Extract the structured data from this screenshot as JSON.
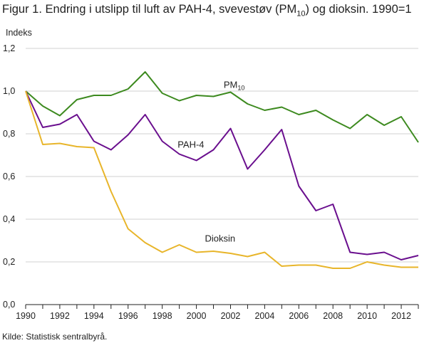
{
  "title": {
    "main": "Figur 1. Endring i utslipp til luft av PAH-4, svevestøv (PM",
    "sub": "10",
    "rest": ") og dioksin. 1990=1"
  },
  "source": "Kilde: Statistisk sentralbyrå.",
  "chart_data": {
    "type": "line",
    "ylabel": "Indeks",
    "xlabel": "",
    "ylim": [
      0,
      1.2
    ],
    "yticks": [
      "0,0",
      "0,2",
      "0,4",
      "0,6",
      "0,8",
      "1,0",
      "1,2"
    ],
    "xlim": [
      1990,
      2013
    ],
    "xticks": [
      "1990",
      "1992",
      "1994",
      "1996",
      "1998",
      "2000",
      "2002",
      "2004",
      "2006",
      "2008",
      "2010",
      "2012"
    ],
    "grid": "horizontal",
    "x": [
      1990,
      1991,
      1992,
      1993,
      1994,
      1995,
      1996,
      1997,
      1998,
      1999,
      2000,
      2001,
      2002,
      2003,
      2004,
      2005,
      2006,
      2007,
      2008,
      2009,
      2010,
      2011,
      2012,
      2013
    ],
    "series": [
      {
        "name": "PM",
        "name_sub": "10",
        "color": "#3d8a1f",
        "values": [
          1.0,
          0.93,
          0.885,
          0.96,
          0.98,
          0.98,
          1.01,
          1.09,
          0.99,
          0.955,
          0.98,
          0.975,
          0.995,
          0.94,
          0.91,
          0.925,
          0.89,
          0.91,
          0.865,
          0.825,
          0.89,
          0.84,
          0.88,
          0.76
        ]
      },
      {
        "name": "PAH-4",
        "color": "#6a0f8e",
        "values": [
          1.0,
          0.83,
          0.845,
          0.89,
          0.765,
          0.725,
          0.795,
          0.89,
          0.765,
          0.705,
          0.675,
          0.725,
          0.825,
          0.635,
          0.725,
          0.82,
          0.555,
          0.44,
          0.47,
          0.245,
          0.235,
          0.245,
          0.21,
          0.23
        ]
      },
      {
        "name": "Dioksin",
        "color": "#e8b52a",
        "values": [
          1.0,
          0.75,
          0.755,
          0.74,
          0.735,
          0.53,
          0.355,
          0.29,
          0.245,
          0.28,
          0.245,
          0.25,
          0.24,
          0.225,
          0.245,
          0.18,
          0.185,
          0.185,
          0.17,
          0.17,
          0.2,
          0.185,
          0.175,
          0.175
        ]
      }
    ]
  }
}
